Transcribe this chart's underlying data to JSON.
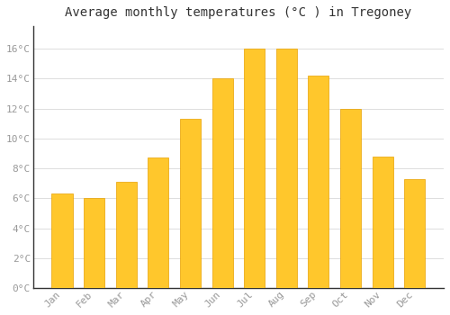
{
  "title": "Average monthly temperatures (°C ) in Tregoney",
  "months": [
    "Jan",
    "Feb",
    "Mar",
    "Apr",
    "May",
    "Jun",
    "Jul",
    "Aug",
    "Sep",
    "Oct",
    "Nov",
    "Dec"
  ],
  "values": [
    6.3,
    6.0,
    7.1,
    8.7,
    11.3,
    14.0,
    16.0,
    16.0,
    14.2,
    12.0,
    8.8,
    7.3
  ],
  "bar_color_top": "#FFCC44",
  "bar_color_bottom": "#FFA500",
  "bar_edge_color": "#E8A000",
  "background_color": "#FFFFFF",
  "grid_color": "#DDDDDD",
  "ylim": [
    0,
    17.5
  ],
  "yticks": [
    0,
    2,
    4,
    6,
    8,
    10,
    12,
    14,
    16
  ],
  "title_fontsize": 10,
  "tick_fontsize": 8,
  "axis_color": "#999999",
  "spine_color": "#333333"
}
